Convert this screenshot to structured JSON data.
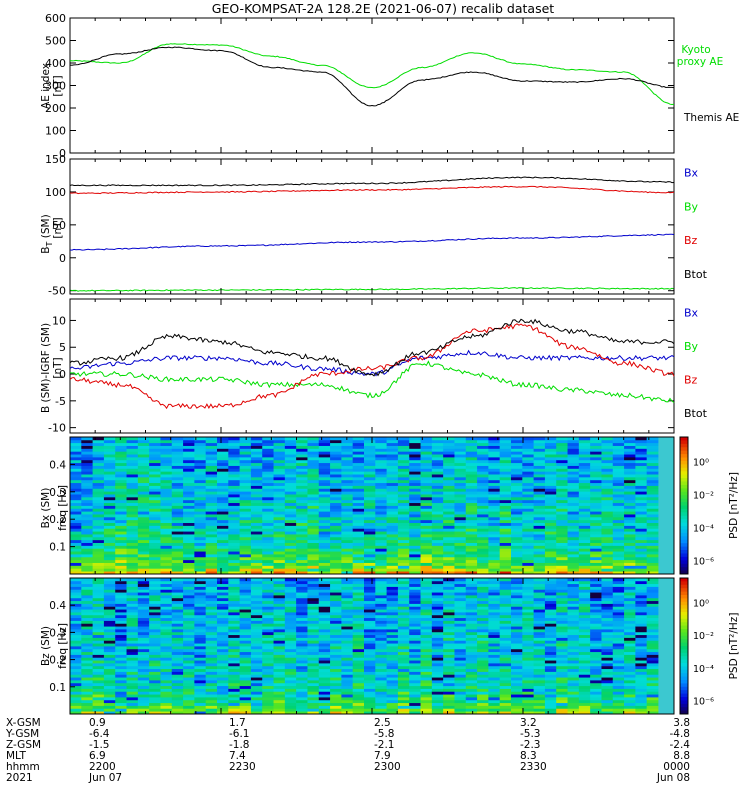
{
  "title": "GEO-KOMPSAT-2A 128.2E (2021-06-07) recalib dataset",
  "colors": {
    "black": "#000000",
    "red": "#e00000",
    "green": "#00dd00",
    "blue": "#0000cc"
  },
  "chart_data": [
    {
      "type": "line",
      "ylabel": "AE index [nT]",
      "ylim": [
        0,
        600
      ],
      "yticks": [
        0,
        100,
        200,
        300,
        400,
        500,
        600
      ],
      "grid": false,
      "legend_position": "right",
      "x_minutes": [
        0,
        10,
        20,
        30,
        40,
        50,
        60,
        70,
        80,
        90,
        100,
        110,
        120
      ],
      "series": [
        {
          "name": "Kyoto proxy AE",
          "color": "#00dd00",
          "values": [
            410,
            400,
            485,
            480,
            430,
            390,
            290,
            380,
            445,
            395,
            370,
            360,
            215
          ]
        },
        {
          "name": "Themis AE",
          "color": "#000000",
          "values": [
            390,
            440,
            470,
            455,
            380,
            360,
            210,
            325,
            360,
            320,
            315,
            330,
            290
          ]
        }
      ]
    },
    {
      "type": "line",
      "ylabel": "B_T (SM) [nT]",
      "ylim": [
        -55,
        150
      ],
      "yticks": [
        -50,
        0,
        50,
        100,
        150
      ],
      "legend_position": "right",
      "x_minutes": [
        0,
        30,
        60,
        90,
        120
      ],
      "series": [
        {
          "name": "Bx",
          "color": "#0000cc",
          "values": [
            12,
            18,
            24,
            30,
            35
          ]
        },
        {
          "name": "By",
          "color": "#00dd00",
          "values": [
            -50,
            -49,
            -48,
            -46,
            -47
          ]
        },
        {
          "name": "Bz",
          "color": "#e00000",
          "values": [
            98,
            100,
            103,
            108,
            99
          ]
        },
        {
          "name": "Btot",
          "color": "#000000",
          "values": [
            110,
            110,
            113,
            122,
            115
          ]
        }
      ]
    },
    {
      "type": "line",
      "ylabel": "B (SM)-IGRF (SM) [nT]",
      "ylim": [
        -11,
        14
      ],
      "yticks": [
        -10,
        -5,
        0,
        5,
        10
      ],
      "legend_position": "right",
      "x_minutes": [
        0,
        10,
        20,
        30,
        40,
        50,
        60,
        70,
        80,
        90,
        100,
        110,
        120
      ],
      "series": [
        {
          "name": "Bx",
          "color": "#0000cc",
          "values": [
            1,
            2,
            3,
            3,
            2,
            1,
            0,
            3,
            4,
            3,
            3,
            3,
            3
          ]
        },
        {
          "name": "By",
          "color": "#00dd00",
          "values": [
            0,
            0,
            -1,
            -1,
            -2,
            -2,
            -4,
            2,
            0,
            -2,
            -3,
            -4,
            -5
          ]
        },
        {
          "name": "Bz",
          "color": "#e00000",
          "values": [
            -1,
            -2,
            -6,
            -6,
            -4,
            0,
            1,
            3,
            8,
            9,
            5,
            2,
            0
          ]
        },
        {
          "name": "Btot",
          "color": "#000000",
          "values": [
            2,
            3,
            7,
            6,
            4,
            3,
            0,
            4,
            7,
            10,
            8,
            6,
            6
          ]
        }
      ]
    },
    {
      "type": "heatmap",
      "ylabel": "Bx (SM) freq [Hz]",
      "ylim": [
        0,
        0.5
      ],
      "yticks": [
        0.1,
        0.2,
        0.3,
        0.4
      ],
      "colorbar_label": "PSD [nT²/Hz]",
      "colorbar_ticks": [
        "10⁰",
        "10⁻²",
        "10⁻⁴",
        "10⁻⁶"
      ]
    },
    {
      "type": "heatmap",
      "ylabel": "Bz (SM) freq [Hz]",
      "ylim": [
        0,
        0.5
      ],
      "yticks": [
        0.1,
        0.2,
        0.3,
        0.4
      ],
      "colorbar_label": "PSD [nT²/Hz]",
      "colorbar_ticks": [
        "10⁰",
        "10⁻²",
        "10⁻⁴",
        "10⁻⁶"
      ]
    }
  ],
  "panel_labels": {
    "ae": [
      "AE index",
      "[nT]"
    ],
    "bt": [
      "B",
      "T",
      " (SM)",
      "[nT]"
    ],
    "bd": [
      "B (SM)-IGRF (SM)",
      "[nT]"
    ],
    "sx": [
      "Bx (SM)",
      "freq [Hz]"
    ],
    "sz": [
      "Bz (SM)",
      "freq [Hz]"
    ],
    "psd": "PSD [nT²/Hz]"
  },
  "legend_ae": {
    "kyoto_line1": "Kyoto",
    "kyoto_line2": "proxy AE",
    "themis": "Themis AE"
  },
  "orbit_table": {
    "row_labels": [
      "X-GSM",
      "Y-GSM",
      "Z-GSM",
      "MLT",
      "hhmm",
      "2021"
    ],
    "columns": [
      [
        "0.9",
        "-6.4",
        "-1.5",
        "6.9",
        "2200",
        "Jun 07"
      ],
      [
        "1.7",
        "-6.1",
        "-1.8",
        "7.4",
        "2230",
        ""
      ],
      [
        "2.5",
        "-5.8",
        "-2.1",
        "7.9",
        "2300",
        ""
      ],
      [
        "3.2",
        "-5.3",
        "-2.3",
        "8.3",
        "2330",
        ""
      ],
      [
        "3.8",
        "-4.8",
        "-2.4",
        "8.8",
        "0000",
        "Jun 08"
      ]
    ]
  }
}
